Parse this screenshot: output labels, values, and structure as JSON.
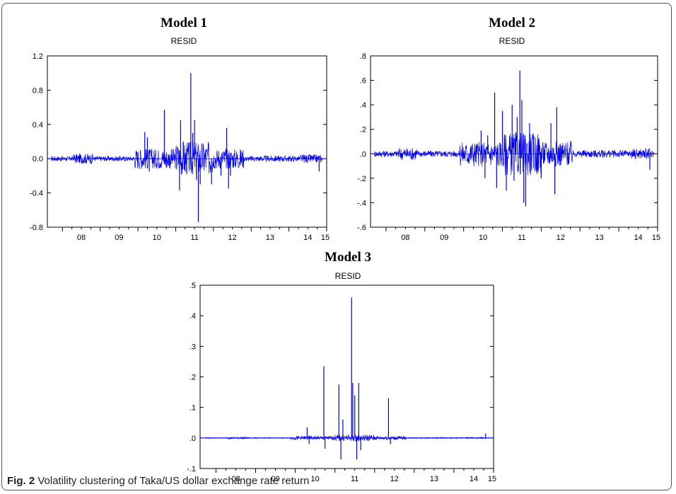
{
  "figure": {
    "label": "Fig. 2",
    "caption": "Volatility clustering of Taka/US dollar exchange rate return"
  },
  "colors": {
    "series": "#0000ee",
    "axis": "#000000"
  },
  "chart_data": [
    {
      "type": "line",
      "title": "Model 1",
      "subtitle": "RESID",
      "series": [
        {
          "color": "#0000ee"
        }
      ],
      "x_ticks": [
        "08",
        "09",
        "10",
        "11",
        "12",
        "13",
        "14",
        "15"
      ],
      "y_ticks": [
        1.2,
        0.8,
        0.4,
        0.0,
        -0.4,
        -0.8
      ],
      "y_tick_labels": [
        "1.2",
        "0.8",
        "0.4",
        "0.0",
        "-0.4",
        "-0.8"
      ],
      "ylim": [
        -0.8,
        1.2
      ],
      "xlim": [
        2007.6,
        2015.0
      ],
      "zero_line": true,
      "grid": false,
      "spikes": [
        {
          "x": 2010.18,
          "v": 0.31
        },
        {
          "x": 2010.25,
          "v": 0.25
        },
        {
          "x": 2010.3,
          "v": -0.15
        },
        {
          "x": 2010.7,
          "v": 0.57
        },
        {
          "x": 2010.75,
          "v": -0.1
        },
        {
          "x": 2011.1,
          "v": -0.37
        },
        {
          "x": 2011.13,
          "v": 0.45
        },
        {
          "x": 2011.2,
          "v": 0.2
        },
        {
          "x": 2011.25,
          "v": -0.15
        },
        {
          "x": 2011.4,
          "v": 1.0
        },
        {
          "x": 2011.45,
          "v": 0.3
        },
        {
          "x": 2011.5,
          "v": 0.45
        },
        {
          "x": 2011.55,
          "v": -0.25
        },
        {
          "x": 2011.6,
          "v": -0.74
        },
        {
          "x": 2011.65,
          "v": -0.3
        },
        {
          "x": 2011.95,
          "v": -0.3
        },
        {
          "x": 2012.2,
          "v": -0.2
        },
        {
          "x": 2012.35,
          "v": 0.36
        },
        {
          "x": 2012.4,
          "v": -0.35
        },
        {
          "x": 2012.45,
          "v": -0.2
        },
        {
          "x": 2014.8,
          "v": -0.15
        }
      ]
    },
    {
      "type": "line",
      "title": "Model 2",
      "subtitle": "RESID",
      "series": [
        {
          "color": "#0000ee"
        }
      ],
      "x_ticks": [
        "08",
        "09",
        "10",
        "11",
        "12",
        "13",
        "14",
        "15"
      ],
      "y_ticks": [
        0.8,
        0.6,
        0.4,
        0.2,
        0.0,
        -0.2,
        -0.4,
        -0.6
      ],
      "y_tick_labels": [
        ".8",
        ".6",
        ".4",
        ".2",
        ".0",
        "-.2",
        "-.4",
        "-.6"
      ],
      "ylim": [
        -0.6,
        0.8
      ],
      "xlim": [
        2007.6,
        2015.0
      ],
      "zero_line": true,
      "grid": false,
      "spikes": [
        {
          "x": 2010.45,
          "v": 0.19
        },
        {
          "x": 2010.55,
          "v": -0.2
        },
        {
          "x": 2010.62,
          "v": 0.15
        },
        {
          "x": 2010.8,
          "v": 0.5
        },
        {
          "x": 2010.85,
          "v": -0.28
        },
        {
          "x": 2011.0,
          "v": 0.35
        },
        {
          "x": 2011.1,
          "v": -0.3
        },
        {
          "x": 2011.25,
          "v": 0.4
        },
        {
          "x": 2011.3,
          "v": -0.22
        },
        {
          "x": 2011.38,
          "v": 0.3
        },
        {
          "x": 2011.45,
          "v": 0.68
        },
        {
          "x": 2011.5,
          "v": 0.44
        },
        {
          "x": 2011.55,
          "v": -0.4
        },
        {
          "x": 2011.6,
          "v": -0.43
        },
        {
          "x": 2011.7,
          "v": 0.25
        },
        {
          "x": 2012.0,
          "v": -0.2
        },
        {
          "x": 2012.25,
          "v": 0.25
        },
        {
          "x": 2012.35,
          "v": -0.33
        },
        {
          "x": 2012.4,
          "v": 0.38
        },
        {
          "x": 2014.8,
          "v": -0.13
        }
      ]
    },
    {
      "type": "line",
      "title": "Model 3",
      "subtitle": "RESID",
      "series": [
        {
          "color": "#0000ee"
        }
      ],
      "x_ticks": [
        "08",
        "09",
        "10",
        "11",
        "12",
        "13",
        "14",
        "15"
      ],
      "y_ticks": [
        0.5,
        0.4,
        0.3,
        0.2,
        0.1,
        0.0,
        -0.1
      ],
      "y_tick_labels": [
        ".5",
        ".4",
        ".3",
        ".2",
        ".1",
        ".0",
        "-.1"
      ],
      "ylim": [
        -0.1,
        0.5
      ],
      "xlim": [
        2007.6,
        2015.0
      ],
      "zero_line": true,
      "grid": false,
      "spikes": [
        {
          "x": 2010.3,
          "v": 0.035
        },
        {
          "x": 2010.35,
          "v": -0.02
        },
        {
          "x": 2010.72,
          "v": 0.235
        },
        {
          "x": 2010.75,
          "v": -0.035
        },
        {
          "x": 2011.1,
          "v": 0.175
        },
        {
          "x": 2011.15,
          "v": -0.07
        },
        {
          "x": 2011.2,
          "v": 0.06
        },
        {
          "x": 2011.42,
          "v": 0.46
        },
        {
          "x": 2011.45,
          "v": 0.18
        },
        {
          "x": 2011.5,
          "v": 0.14
        },
        {
          "x": 2011.55,
          "v": -0.07
        },
        {
          "x": 2011.6,
          "v": 0.18
        },
        {
          "x": 2011.65,
          "v": -0.04
        },
        {
          "x": 2012.35,
          "v": 0.13
        },
        {
          "x": 2012.4,
          "v": -0.02
        },
        {
          "x": 2014.8,
          "v": 0.015
        }
      ]
    }
  ]
}
